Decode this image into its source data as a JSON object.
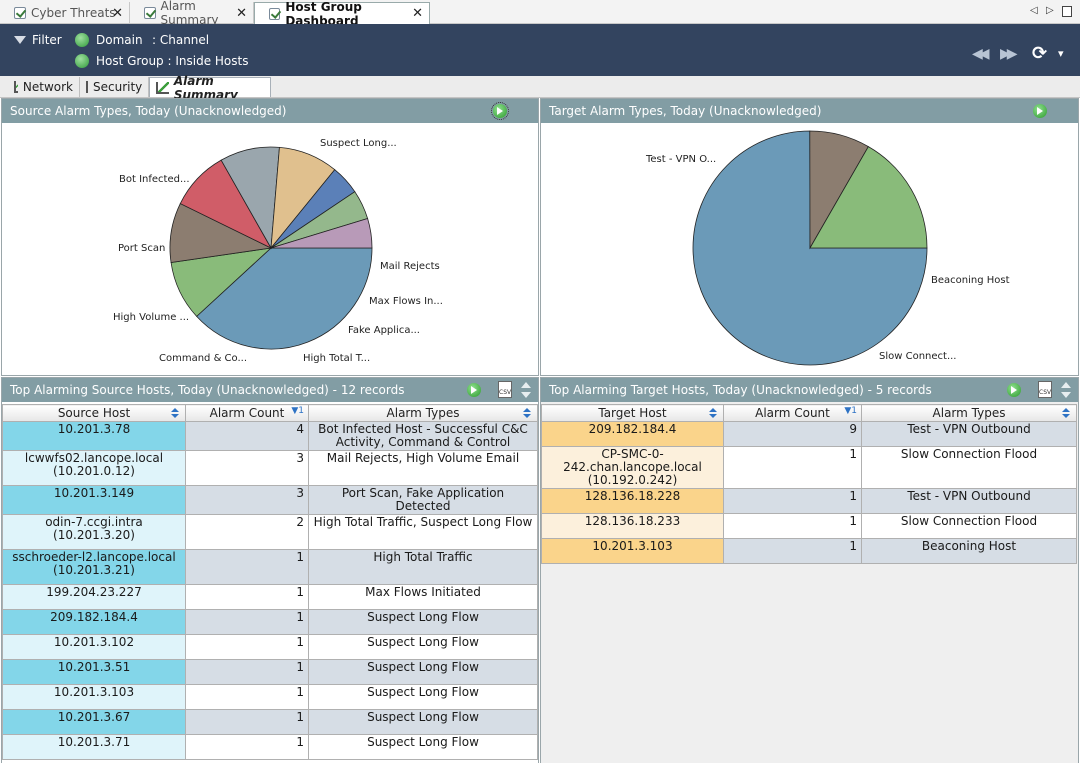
{
  "tabs": [
    {
      "label": "Cyber Threats"
    },
    {
      "label": "Alarm Summary"
    },
    {
      "label": "Host Group Dashboard"
    }
  ],
  "header": {
    "filter_label": "Filter",
    "domain_label": "Domain",
    "channel_label": ": Channel",
    "host_group_label": "Host Group : Inside Hosts"
  },
  "subtabs": [
    {
      "label": "Network"
    },
    {
      "label": "Security"
    },
    {
      "label": "Alarm Summary"
    }
  ],
  "source_chart": {
    "title": "Source Alarm Types, Today (Unacknowledged)",
    "chart_data": {
      "type": "pie",
      "slices": [
        {
          "label": "Suspect Long...",
          "value": 30.8,
          "color": "#6b9ab8"
        },
        {
          "label": "Bot Infected...",
          "value": 7.7,
          "color": "#89bb7a"
        },
        {
          "label": "Port Scan",
          "value": 7.7,
          "color": "#8c7d70"
        },
        {
          "label": "High Volume ...",
          "value": 7.7,
          "color": "#d05d68"
        },
        {
          "label": "Command & Co...",
          "value": 7.7,
          "color": "#9aa6ad"
        },
        {
          "label": "High Total T...",
          "value": 7.7,
          "color": "#e0c08e"
        },
        {
          "label": "Fake Applica...",
          "value": 3.8,
          "color": "#5b80b8"
        },
        {
          "label": "Max Flows In...",
          "value": 3.8,
          "color": "#94b88c"
        },
        {
          "label": "Mail Rejects",
          "value": 3.8,
          "color": "#b89ab8"
        }
      ]
    }
  },
  "target_chart": {
    "title": "Target Alarm Types, Today (Unacknowledged)",
    "chart_data": {
      "type": "pie",
      "slices": [
        {
          "label": "Test - VPN O...",
          "value": 69.2,
          "color": "#6b9ab8"
        },
        {
          "label": "Beaconing Host",
          "value": 7.7,
          "color": "#8c7d70"
        },
        {
          "label": "Slow Connect...",
          "value": 15.4,
          "color": "#89bb7a"
        }
      ]
    }
  },
  "source_table": {
    "title": "Top Alarming Source Hosts, Today (Unacknowledged) - 12 records",
    "columns": [
      "Source Host",
      "Alarm Count",
      "Alarm Types"
    ],
    "sort_rank": "1",
    "rows": [
      {
        "host": "10.201.3.78",
        "count": "4",
        "types": "Bot Infected Host - Successful C&C Activity, Command & Control"
      },
      {
        "host": "lcwwfs02.lancope.local (10.201.0.12)",
        "count": "3",
        "types": "Mail Rejects, High Volume Email"
      },
      {
        "host": "10.201.3.149",
        "count": "3",
        "types": "Port Scan, Fake Application Detected"
      },
      {
        "host": "odin-7.ccgi.intra (10.201.3.20)",
        "count": "2",
        "types": "High Total Traffic, Suspect Long Flow"
      },
      {
        "host": "sschroeder-l2.lancope.local (10.201.3.21)",
        "count": "1",
        "types": "High Total Traffic"
      },
      {
        "host": "199.204.23.227",
        "count": "1",
        "types": "Max Flows Initiated"
      },
      {
        "host": "209.182.184.4",
        "count": "1",
        "types": "Suspect Long Flow"
      },
      {
        "host": "10.201.3.102",
        "count": "1",
        "types": "Suspect Long Flow"
      },
      {
        "host": "10.201.3.51",
        "count": "1",
        "types": "Suspect Long Flow"
      },
      {
        "host": "10.201.3.103",
        "count": "1",
        "types": "Suspect Long Flow"
      },
      {
        "host": "10.201.3.67",
        "count": "1",
        "types": "Suspect Long Flow"
      },
      {
        "host": "10.201.3.71",
        "count": "1",
        "types": "Suspect Long Flow"
      }
    ]
  },
  "target_table": {
    "title": "Top Alarming Target Hosts, Today (Unacknowledged) - 5 records",
    "columns": [
      "Target Host",
      "Alarm Count",
      "Alarm Types"
    ],
    "sort_rank": "1",
    "rows": [
      {
        "host": "209.182.184.4",
        "count": "9",
        "types": "Test - VPN Outbound"
      },
      {
        "host": "CP-SMC-0-242.chan.lancope.local (10.192.0.242)",
        "count": "1",
        "types": "Slow Connection Flood"
      },
      {
        "host": "128.136.18.228",
        "count": "1",
        "types": "Test - VPN Outbound"
      },
      {
        "host": "128.136.18.233",
        "count": "1",
        "types": "Slow Connection Flood"
      },
      {
        "host": "10.201.3.103",
        "count": "1",
        "types": "Beaconing Host"
      }
    ]
  },
  "icons": {
    "tab_check": "check-icon",
    "filter": "funnel-icon",
    "globe": "globe-icon",
    "go": "go-arrow-icon",
    "csv": "csv-export-icon",
    "refresh": "refresh-icon"
  },
  "glyphs": {
    "csv": "CSV",
    "refresh": "⟳",
    "rewind": "◀◀",
    "forward": "▶▶",
    "dropdown": "▾",
    "nav_left": "◁",
    "nav_right": "▷"
  }
}
